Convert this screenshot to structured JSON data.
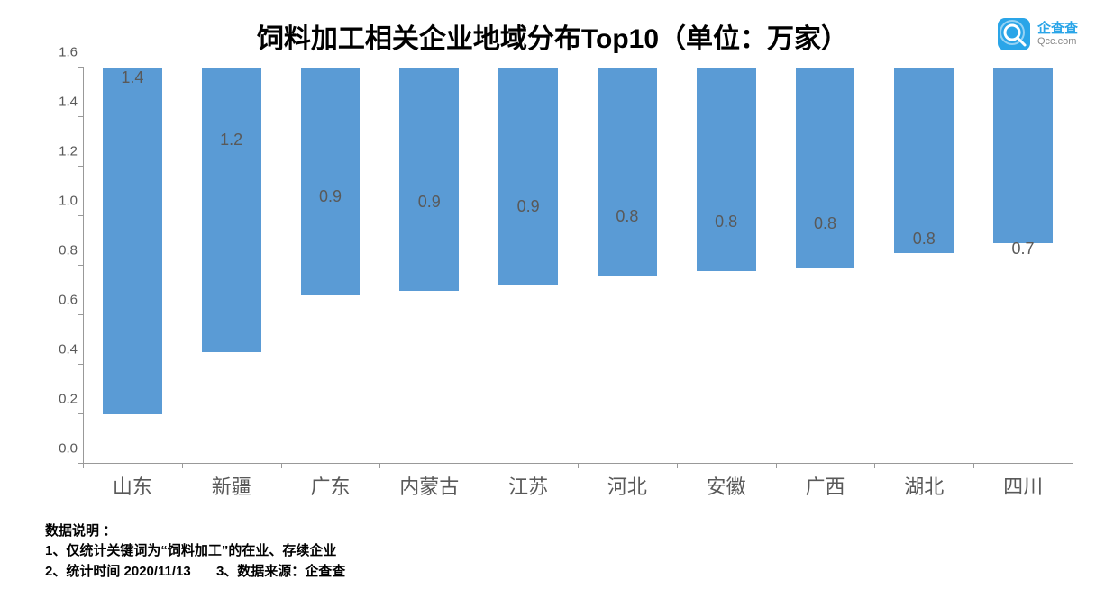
{
  "title": {
    "text": "饲料加工相关企业地域分布Top10（单位：万家）",
    "fontsize": 30,
    "color": "#000000",
    "fontweight": "bold"
  },
  "logo": {
    "cn": "企查查",
    "en": "Qcc.com",
    "icon_color": "#2aa5e8"
  },
  "chart": {
    "type": "bar",
    "categories": [
      "山东",
      "新疆",
      "广东",
      "内蒙古",
      "江苏",
      "河北",
      "安徽",
      "广西",
      "湖北",
      "四川"
    ],
    "value_labels": [
      "1.4",
      "1.2",
      "0.9",
      "0.9",
      "0.9",
      "0.8",
      "0.8",
      "0.8",
      "0.8",
      "0.7"
    ],
    "values": [
      1.4,
      1.15,
      0.92,
      0.9,
      0.88,
      0.84,
      0.82,
      0.81,
      0.75,
      0.71
    ],
    "bar_color": "#5a9bd5",
    "ylim": [
      0.0,
      1.6
    ],
    "ytick_step": 0.2,
    "yticks": [
      "0.0",
      "0.2",
      "0.4",
      "0.6",
      "0.8",
      "1.0",
      "1.2",
      "1.4",
      "1.6"
    ],
    "axis_color": "#999999",
    "tick_label_color": "#595959",
    "tick_fontsize": 15,
    "xlabel_fontsize": 22,
    "value_label_fontsize": 18,
    "bar_width_ratio": 0.6,
    "background_color": "#ffffff"
  },
  "notes": {
    "heading": "数据说明 ：",
    "line1": "1、仅统计关键词为“饲料加工”的在业、存续企业",
    "line2a": "2、统计时间 2020/11/13",
    "line2b": "3、数据来源：企查查",
    "fontsize": 15,
    "color": "#000000",
    "fontweight": "bold"
  }
}
